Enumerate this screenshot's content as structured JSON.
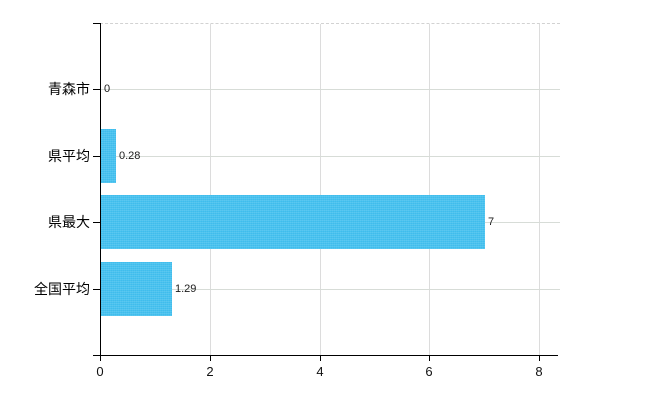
{
  "chart_data": {
    "type": "bar",
    "orientation": "horizontal",
    "title": "",
    "categories": [
      "青森市",
      "県平均",
      "県最大",
      "全国平均"
    ],
    "values": [
      0,
      0.28,
      7,
      1.29
    ],
    "value_labels": [
      "0",
      "0.28",
      "7",
      "1.29"
    ],
    "xlim": [
      0,
      8
    ],
    "x_ticks": [
      0,
      2,
      4,
      6,
      8
    ],
    "x_tick_labels": [
      "0",
      "2",
      "4",
      "6",
      "8"
    ],
    "grid": true,
    "legend": "none",
    "colors": {
      "bar": "#47c2ef",
      "vertical_grid": "#dcdcdc",
      "horizontal_grid": "#d7dcd7",
      "axis": "#000000",
      "background": "#ffffff",
      "text": "#000000"
    }
  }
}
